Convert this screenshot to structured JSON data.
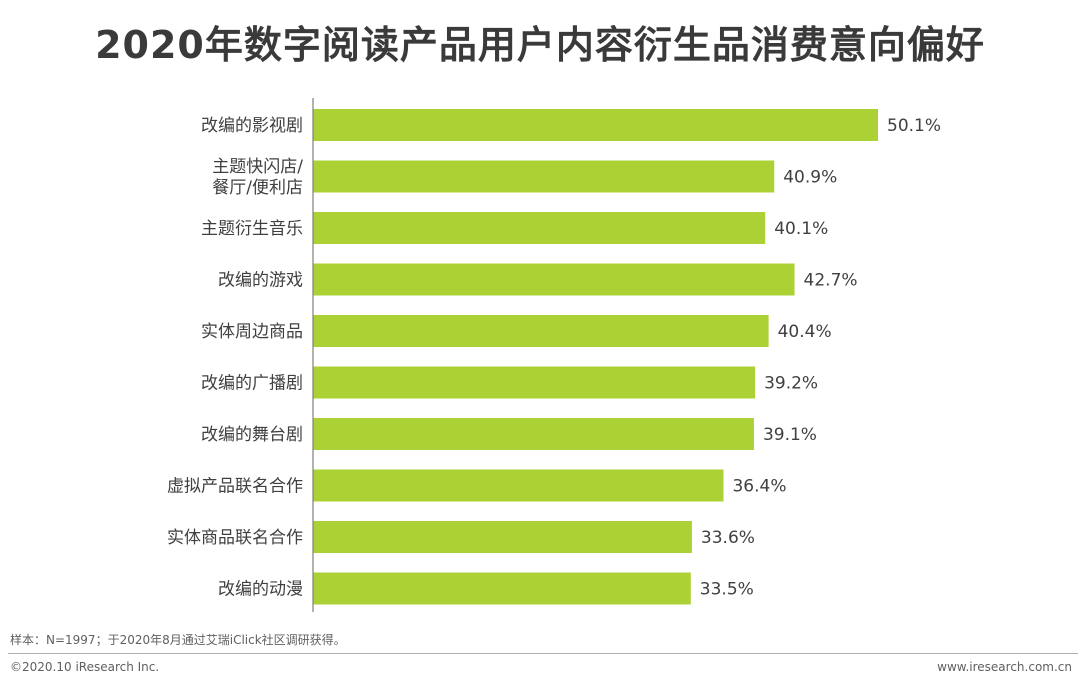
{
  "title": "2020年数字阅读产品用户内容衍生品消费意向偏好",
  "chart_data": {
    "type": "bar",
    "orientation": "horizontal",
    "categories": [
      [
        "改编的影视剧"
      ],
      [
        "主题快闪店/",
        "餐厅/便利店"
      ],
      [
        "主题衍生音乐"
      ],
      [
        "改编的游戏"
      ],
      [
        "实体周边商品"
      ],
      [
        "改编的广播剧"
      ],
      [
        "改编的舞台剧"
      ],
      [
        "虚拟产品联名合作"
      ],
      [
        "实体商品联名合作"
      ],
      [
        "改编的动漫"
      ]
    ],
    "values": [
      50.1,
      40.9,
      40.1,
      42.7,
      40.4,
      39.2,
      39.1,
      36.4,
      33.6,
      33.5
    ],
    "value_labels": [
      "50.1%",
      "40.9%",
      "40.1%",
      "42.7%",
      "40.4%",
      "39.2%",
      "39.1%",
      "36.4%",
      "33.6%",
      "33.5%"
    ],
    "bar_color": "#acd135",
    "xlim": [
      0,
      50.1
    ],
    "grid": false
  },
  "footer": {
    "note": "样本：N=1997；于2020年8月通过艾瑞iClick社区调研获得。",
    "copyright": "©2020.10 iResearch Inc.",
    "url": "www.iresearch.com.cn"
  }
}
